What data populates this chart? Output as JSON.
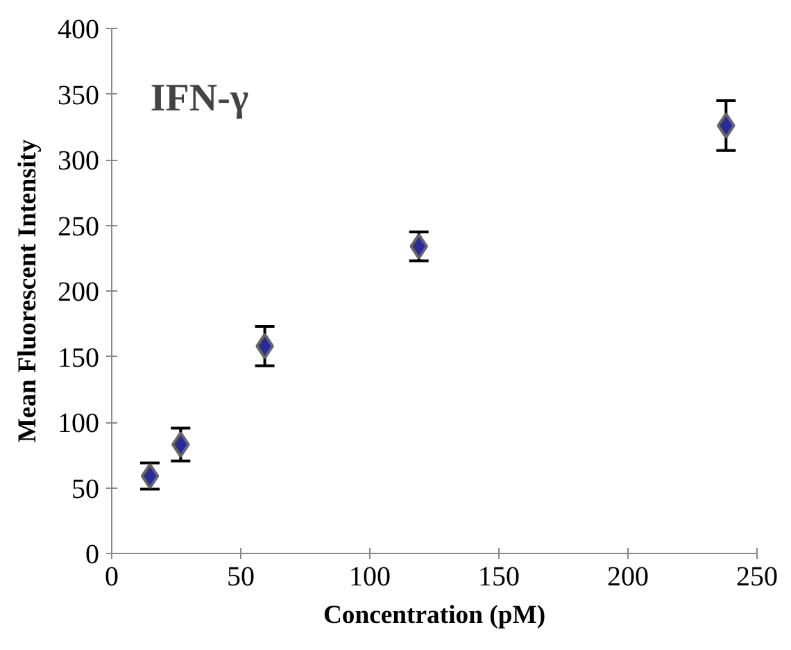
{
  "chart_data": {
    "type": "scatter",
    "xlabel": "Concentration (pM)",
    "ylabel": "Mean Fluorescent Intensity",
    "annotations": [
      "IFN-γ"
    ],
    "x": [
      14.8,
      26.7,
      59.3,
      119,
      238
    ],
    "series": [
      {
        "color": "#2a2a9a",
        "values": [
          59,
          83,
          158,
          234,
          326
        ],
        "errors": [
          10,
          12.5,
          15,
          11,
          19
        ]
      }
    ],
    "marker": "diamond",
    "xlim": [
      0,
      250
    ],
    "ylim": [
      0,
      400
    ],
    "xticks": [
      0,
      50,
      100,
      150,
      200,
      250
    ],
    "yticks": [
      0,
      50,
      100,
      150,
      200,
      250,
      300,
      350,
      400
    ],
    "grid": false
  }
}
